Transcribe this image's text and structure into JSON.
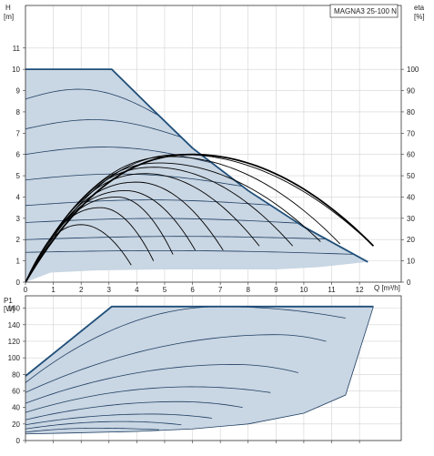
{
  "chart_data": [
    {
      "type": "line",
      "title": "MAGNA3 25-100 N",
      "xlabel": "Q [m³/h]",
      "ylabel": "H",
      "ylabel_unit": "[m]",
      "y2label": "eta",
      "y2label_unit": "[%]",
      "xlim": [
        0,
        13.5
      ],
      "ylim": [
        0,
        13.0
      ],
      "y2lim": [
        0,
        130
      ],
      "x_ticks": [
        0,
        1,
        2,
        3,
        4,
        5,
        6,
        7,
        8,
        9,
        10,
        11,
        12
      ],
      "y_ticks": [
        0,
        1,
        2,
        3,
        4,
        5,
        6,
        7,
        8,
        9,
        10,
        11
      ],
      "y2_ticks": [
        0,
        10,
        20,
        30,
        40,
        50,
        60,
        70,
        80,
        90,
        100
      ],
      "grid": true,
      "region_upper": [
        [
          0,
          10.0
        ],
        [
          3.1,
          10.0
        ],
        [
          4.5,
          8.2
        ],
        [
          6.0,
          6.3
        ],
        [
          8.0,
          4.3
        ],
        [
          10.0,
          2.6
        ],
        [
          12.3,
          0.95
        ]
      ],
      "region_lower": [
        [
          0,
          0
        ],
        [
          0.9,
          0.45
        ],
        [
          2.5,
          0.55
        ],
        [
          5.0,
          0.6
        ],
        [
          7.0,
          0.6
        ],
        [
          9.0,
          0.6
        ],
        [
          10.5,
          0.7
        ],
        [
          12.3,
          0.95
        ]
      ],
      "head_curves": [
        {
          "h0": 8.6,
          "q_end": 4.8
        },
        {
          "h0": 7.2,
          "q_end": 5.6
        },
        {
          "h0": 6.0,
          "q_end": 6.7
        },
        {
          "h0": 4.8,
          "q_end": 7.8
        },
        {
          "h0": 3.6,
          "q_end": 8.8
        },
        {
          "h0": 2.8,
          "q_end": 9.8
        },
        {
          "h0": 2.0,
          "q_end": 10.8
        },
        {
          "h0": 1.4,
          "q_end": 11.8
        }
      ],
      "eta_curves": [
        {
          "peak_q": 5.6,
          "peak_h": 6.0,
          "q_end": 12.5,
          "h_end": 1.7
        },
        {
          "peak_q": 5.2,
          "peak_h": 5.9,
          "q_end": 11.3,
          "h_end": 1.8
        },
        {
          "peak_q": 4.8,
          "peak_h": 5.6,
          "q_end": 10.6,
          "h_end": 1.9
        },
        {
          "peak_q": 4.6,
          "peak_h": 5.4,
          "q_end": 9.6,
          "h_end": 1.7
        },
        {
          "peak_q": 4.3,
          "peak_h": 5.1,
          "q_end": 8.4,
          "h_end": 1.7
        },
        {
          "peak_q": 4.0,
          "peak_h": 4.7,
          "q_end": 7.1,
          "h_end": 1.5
        },
        {
          "peak_q": 3.6,
          "peak_h": 4.3,
          "q_end": 6.1,
          "h_end": 1.5
        },
        {
          "peak_q": 3.3,
          "peak_h": 4.0,
          "q_end": 5.3,
          "h_end": 1.3
        },
        {
          "peak_q": 2.7,
          "peak_h": 3.5,
          "q_end": 4.6,
          "h_end": 1.0
        },
        {
          "peak_q": 2.0,
          "peak_h": 2.7,
          "q_end": 3.8,
          "h_end": 0.8
        }
      ],
      "eta_max_curve": {
        "peak_q": 6.0,
        "peak_h": 6.0,
        "q_end": 12.5,
        "h_end": 1.7
      }
    },
    {
      "type": "line",
      "ylabel": "P1",
      "ylabel_unit": "[W]",
      "xlim": [
        0,
        13.5
      ],
      "ylim": [
        0,
        175
      ],
      "y_ticks": [
        0,
        20,
        40,
        60,
        80,
        100,
        120,
        140,
        160
      ],
      "grid": true,
      "region_upper": [
        [
          0,
          78
        ],
        [
          3.1,
          162
        ],
        [
          12.5,
          162
        ]
      ],
      "region_lower": [
        [
          0,
          8
        ],
        [
          1.5,
          9
        ],
        [
          4.0,
          11
        ],
        [
          6.0,
          14
        ],
        [
          8.0,
          20
        ],
        [
          10.0,
          33
        ],
        [
          11.5,
          55
        ],
        [
          12.5,
          162
        ]
      ],
      "power_curves": [
        {
          "p0": 70,
          "p_peak": 162,
          "q_peak": 7.0,
          "q_end": 11.5,
          "p_end": 148
        },
        {
          "p0": 58,
          "p_peak": 128,
          "q_peak": 9.0,
          "q_end": 10.8,
          "p_end": 120
        },
        {
          "p0": 45,
          "p_peak": 92,
          "q_peak": 7.5,
          "q_end": 9.8,
          "p_end": 82
        },
        {
          "p0": 34,
          "p_peak": 65,
          "q_peak": 6.0,
          "q_end": 8.8,
          "p_end": 58
        },
        {
          "p0": 25,
          "p_peak": 47,
          "q_peak": 5.5,
          "q_end": 7.8,
          "p_end": 40
        },
        {
          "p0": 19,
          "p_peak": 32,
          "q_peak": 4.5,
          "q_end": 6.7,
          "p_end": 27
        },
        {
          "p0": 14,
          "p_peak": 23,
          "q_peak": 3.5,
          "q_end": 5.6,
          "p_end": 19
        },
        {
          "p0": 10,
          "p_peak": 15,
          "q_peak": 2.5,
          "q_end": 4.8,
          "p_end": 13
        }
      ]
    }
  ]
}
